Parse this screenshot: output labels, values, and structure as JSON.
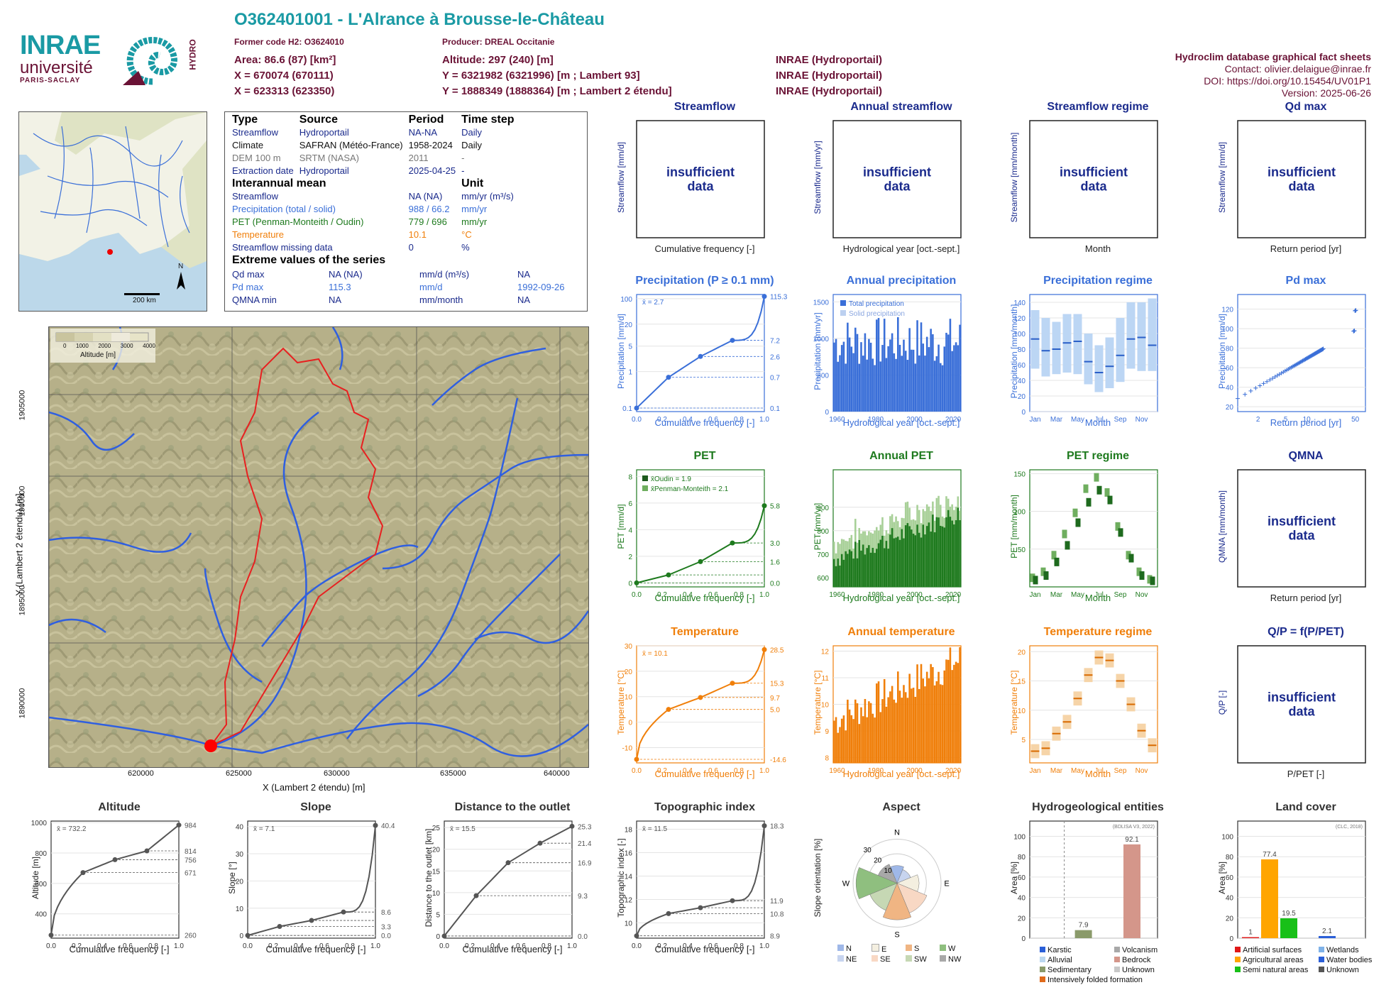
{
  "header": {
    "title": "O362401001 - L'Alrance à Brousse-le-Château",
    "former_code": "Former code H2: O3624010",
    "producer": "Producer: DREAL Occitanie",
    "area": "Area: 86.6 (87) [km²]",
    "altitude": "Altitude: 297 (240) [m]",
    "x93": "X = 670074 (670111)",
    "y93": "Y = 6321982 (6321996) [m ; Lambert 93]",
    "src1": "INRAE (Hydroportail)",
    "x2e": "X = 623313 (623350)",
    "y2e": "Y = 1888349 (1888364) [m ; Lambert 2 étendu]",
    "src2": "INRAE (Hydroportail)",
    "src3": "INRAE (Hydroportail)",
    "db": "Hydroclim database graphical fact sheets",
    "contact": "Contact: olivier.delaigue@inrae.fr",
    "doi": "DOI: https://doi.org/10.15454/UV01P1",
    "version": "Version: 2025-06-26",
    "logo_inrae": "INRAE",
    "logo_univ": "université",
    "logo_paris": "PARIS-SACLAY",
    "logo_hydro": "HYDRO"
  },
  "colors": {
    "teal": "#1a9aa4",
    "maroon": "#6a1235",
    "blue": "#3a6fd8",
    "green": "#1e7a1e",
    "orange": "#f07f0a",
    "navy": "#1a2a8c"
  },
  "inset_map": {
    "scale": "200 km",
    "north": "N"
  },
  "info": {
    "h_type": "Type",
    "h_source": "Source",
    "h_period": "Period",
    "h_step": "Time step",
    "rows": [
      {
        "type": "Streamflow",
        "source": "Hydroportail",
        "period": "NA-NA",
        "step": "Daily"
      },
      {
        "type": "Climate",
        "source": "SAFRAN (Météo-France)",
        "period": "1958-2024",
        "step": "Daily"
      },
      {
        "type": "DEM 100 m",
        "source": "SRTM (NASA)",
        "period": "2011",
        "step": "-"
      },
      {
        "type": "Extraction date",
        "source": "Hydroportail",
        "period": "2025-04-25",
        "step": "-"
      }
    ],
    "h_mean": "Interannual mean",
    "h_unit": "Unit",
    "mean_rows": [
      {
        "label": "Streamflow",
        "value": "NA (NA)",
        "unit": "mm/yr (m³/s)"
      },
      {
        "label": "Precipitation (total / solid)",
        "value": "988 / 66.2",
        "unit": "mm/yr"
      },
      {
        "label": "PET (Penman-Monteith / Oudin)",
        "value": "779 / 696",
        "unit": "mm/yr"
      },
      {
        "label": "Temperature",
        "value": "10.1",
        "unit": "°C"
      },
      {
        "label": "Streamflow missing data",
        "value": "0",
        "unit": "%"
      }
    ],
    "h_extreme": "Extreme values of the series",
    "ext_rows": [
      {
        "label": "Qd max",
        "value": "NA (NA)",
        "unit": "mm/d (m³/s)",
        "date": "NA"
      },
      {
        "label": "Pd max",
        "value": "115.3",
        "unit": "mm/d",
        "date": "1992-09-26"
      },
      {
        "label": "QMNA min",
        "value": "NA",
        "unit": "mm/month",
        "date": "NA"
      }
    ]
  },
  "main_map": {
    "legend_title": "Altitude [m]",
    "legend_ticks": [
      "0",
      "1000",
      "2000",
      "3000",
      "4000"
    ],
    "xlabel": "X (Lambert 2 étendu) [m]",
    "ylabel": "Y (Lambert 2 étendu) [m]",
    "xticks": [
      "620000",
      "625000",
      "630000",
      "635000",
      "640000"
    ],
    "yticks": [
      "1905000",
      "1900000",
      "1895000",
      "1890000"
    ]
  },
  "insufficient": "insufficient data",
  "chart_data": [
    {
      "id": "streamflow",
      "type": "line",
      "title": "Streamflow",
      "ylabel": "Streamflow [mm/d]",
      "xlabel": "Cumulative frequency [-]"
    },
    {
      "id": "annual_streamflow",
      "type": "bar",
      "title": "Annual streamflow",
      "ylabel": "Streamflow [mm/yr]",
      "xlabel": "Hydrological year [oct.-sept.]"
    },
    {
      "id": "streamflow_regime",
      "type": "bar",
      "title": "Streamflow regime",
      "ylabel": "Streamflow [mm/month]",
      "xlabel": "Month"
    },
    {
      "id": "qd_max",
      "type": "scatter",
      "title": "Qd max",
      "ylabel": "Streamflow [mm/d]",
      "xlabel": "Return period [yr]"
    },
    {
      "id": "precip_cdf",
      "type": "line",
      "title": "Precipitation (P ≥ 0.1 mm)",
      "ylabel": "Precipitation [mm/d]",
      "xlabel": "Cumulative frequency [-]",
      "mean_label": "x̄ = 2.7",
      "x": [
        0,
        0.25,
        0.5,
        0.75,
        1.0
      ],
      "y": [
        0.1,
        0.7,
        2.6,
        7.2,
        115.3
      ],
      "ylog": true,
      "yticks": [
        "0.1",
        "1",
        "5",
        "20",
        "100"
      ],
      "right_labels": [
        "115.3",
        "7.2",
        "2.6",
        "0.7",
        "0.1"
      ],
      "xticks": [
        "0.0",
        "0.2",
        "0.4",
        "0.6",
        "0.8",
        "1.0"
      ]
    },
    {
      "id": "annual_precip",
      "type": "bar",
      "title": "Annual precipitation",
      "ylabel": "Precipitation [mm/yr]",
      "xlabel": "Hydrological year [oct.-sept.]",
      "series": [
        {
          "name": "Total precipitation"
        },
        {
          "name": "Solid precipitation"
        }
      ],
      "xticks": [
        "1960",
        "1980",
        "2000",
        "2020"
      ],
      "yticks": [
        "0",
        "500",
        "1000",
        "1500"
      ],
      "ylim": [
        0,
        1600
      ]
    },
    {
      "id": "precip_regime",
      "type": "bar",
      "title": "Precipitation regime",
      "ylabel": "Precipitation [mm/month]",
      "xlabel": "Month",
      "categories": [
        "Jan",
        "Feb",
        "Mar",
        "Apr",
        "May",
        "Jun",
        "Jul",
        "Aug",
        "Sep",
        "Oct",
        "Nov",
        "Dec"
      ],
      "median": [
        93,
        78,
        80,
        88,
        90,
        64,
        50,
        58,
        72,
        93,
        95,
        85
      ],
      "q_low": [
        55,
        45,
        48,
        50,
        48,
        35,
        25,
        30,
        38,
        55,
        52,
        52
      ],
      "q_high": [
        130,
        120,
        115,
        125,
        125,
        100,
        85,
        95,
        120,
        140,
        140,
        145
      ],
      "yticks": [
        "0",
        "20",
        "40",
        "60",
        "80",
        "100",
        "120",
        "140"
      ],
      "xticks": [
        "Jan",
        "Mar",
        "May",
        "Jul",
        "Sep",
        "Nov"
      ],
      "ylim": [
        0,
        150
      ]
    },
    {
      "id": "pd_max",
      "type": "scatter",
      "title": "Pd max",
      "ylabel": "Precipitation [mm/d]",
      "xlabel": "Return period [yr]",
      "yticks": [
        "20",
        "40",
        "60",
        "80",
        "100",
        "120"
      ],
      "xticks": [
        "2",
        "5",
        "10",
        "50"
      ]
    },
    {
      "id": "pet_cdf",
      "type": "line",
      "title": "PET",
      "ylabel": "PET [mm/d]",
      "xlabel": "Cumulative frequency [-]",
      "series": [
        {
          "name": "x̄Oudin = 1.9",
          "x": [
            0,
            0.25,
            0.5,
            0.75,
            1.0
          ],
          "y": [
            0.0,
            0.6,
            1.6,
            3.0,
            5.8
          ]
        },
        {
          "name": "x̄Penman-Monteith = 2.1"
        }
      ],
      "yticks": [
        "0",
        "2",
        "4",
        "6",
        "8"
      ],
      "right_labels": [
        "5.8",
        "3.0",
        "1.6",
        "0.0"
      ],
      "xticks": [
        "0.0",
        "0.2",
        "0.4",
        "0.6",
        "0.8",
        "1.0"
      ]
    },
    {
      "id": "annual_pet",
      "type": "bar",
      "title": "Annual PET",
      "ylabel": "PET [mm/yr]",
      "xlabel": "Hydrological year [oct.-sept.]",
      "xticks": [
        "1960",
        "1980",
        "2000",
        "2020"
      ],
      "yticks": [
        "600",
        "700",
        "800",
        "900"
      ],
      "ylim": [
        560,
        1060
      ]
    },
    {
      "id": "pet_regime",
      "type": "bar",
      "title": "PET regime",
      "ylabel": "PET [mm/month]",
      "xlabel": "Month",
      "categories": [
        "Jan",
        "Feb",
        "Mar",
        "Apr",
        "May",
        "Jun",
        "Jul",
        "Aug",
        "Sep",
        "Oct",
        "Nov",
        "Dec"
      ],
      "oudin": [
        9,
        15,
        33,
        55,
        85,
        112,
        128,
        115,
        72,
        38,
        15,
        8
      ],
      "pm": [
        12,
        20,
        42,
        70,
        98,
        130,
        145,
        125,
        80,
        42,
        20,
        10
      ],
      "yticks": [
        "50",
        "100",
        "150"
      ],
      "xticks": [
        "Jan",
        "Mar",
        "May",
        "Jul",
        "Sep",
        "Nov"
      ],
      "ylim": [
        0,
        155
      ]
    },
    {
      "id": "qmna",
      "type": "scatter",
      "title": "QMNA",
      "ylabel": "QMNA [mm/month]",
      "xlabel": "Return period [yr]"
    },
    {
      "id": "temp_cdf",
      "type": "line",
      "title": "Temperature",
      "ylabel": "Temperature [°C]",
      "xlabel": "Cumulative frequency [-]",
      "mean_label": "x̄ = 10.1",
      "x": [
        0,
        0.25,
        0.5,
        0.75,
        1.0
      ],
      "y": [
        -14.6,
        5.0,
        9.7,
        15.3,
        28.5
      ],
      "yticks": [
        "-10",
        "0",
        "10",
        "20",
        "30"
      ],
      "right_labels": [
        "28.5",
        "15.3",
        "9.7",
        "5.0",
        "-14.6"
      ],
      "xticks": [
        "0.0",
        "0.2",
        "0.4",
        "0.6",
        "0.8",
        "1.0"
      ]
    },
    {
      "id": "annual_temp",
      "type": "bar",
      "title": "Annual temperature",
      "ylabel": "Temperature [°C]",
      "xlabel": "Hydrological year [oct.-sept.]",
      "xticks": [
        "1960",
        "1980",
        "2000",
        "2020"
      ],
      "yticks": [
        "8",
        "9",
        "10",
        "11",
        "12"
      ],
      "ylim": [
        7.8,
        12.2
      ]
    },
    {
      "id": "temp_regime",
      "type": "bar",
      "title": "Temperature regime",
      "ylabel": "Temperature [°C]",
      "xlabel": "Month",
      "categories": [
        "Jan",
        "Feb",
        "Mar",
        "Apr",
        "May",
        "Jun",
        "Jul",
        "Aug",
        "Sep",
        "Oct",
        "Nov",
        "Dec"
      ],
      "median": [
        3,
        3.5,
        6,
        8,
        12,
        16,
        19,
        18.5,
        15,
        11,
        6.5,
        4
      ],
      "yticks": [
        "5",
        "10",
        "15",
        "20"
      ],
      "xticks": [
        "Jan",
        "Mar",
        "May",
        "Jul",
        "Sep",
        "Nov"
      ],
      "ylim": [
        1,
        21
      ]
    },
    {
      "id": "qp",
      "type": "scatter",
      "title": "Q/P = f(P/PET)",
      "ylabel": "Q/P [-]",
      "xlabel": "P/PET [-]"
    },
    {
      "id": "altitude",
      "type": "line",
      "title": "Altitude",
      "ylabel": "Altitude [m]",
      "xlabel": "Cumulative frequency [-]",
      "mean_label": "x̄ = 732.2",
      "x": [
        0,
        0.25,
        0.5,
        0.75,
        1.0
      ],
      "y": [
        260,
        671,
        756,
        814,
        984
      ],
      "yticks": [
        "400",
        "600",
        "800",
        "1000"
      ],
      "right_labels": [
        "984",
        "814",
        "756",
        "671",
        "260"
      ],
      "xticks": [
        "0.0",
        "0.2",
        "0.4",
        "0.6",
        "0.8",
        "1.0"
      ],
      "ylim": [
        240,
        1010
      ]
    },
    {
      "id": "slope",
      "type": "line",
      "title": "Slope",
      "ylabel": "Slope [°]",
      "xlabel": "Cumulative frequency [-]",
      "mean_label": "x̄ = 7.1",
      "x": [
        0,
        0.25,
        0.5,
        0.75,
        1.0
      ],
      "y": [
        0.0,
        3.3,
        5.5,
        8.6,
        40.4
      ],
      "yticks": [
        "0",
        "10",
        "20",
        "30",
        "40"
      ],
      "right_labels": [
        "40.4",
        "8.6",
        "3.3",
        "0.0"
      ],
      "xticks": [
        "0.0",
        "0.2",
        "0.4",
        "0.6",
        "0.8",
        "1.0"
      ],
      "ylim": [
        -1,
        42
      ]
    },
    {
      "id": "distance",
      "type": "line",
      "title": "Distance to the outlet",
      "ylabel": "Distance to the outlet [km]",
      "xlabel": "Cumulative frequency [-]",
      "mean_label": "x̄ = 15.5",
      "x": [
        0,
        0.25,
        0.5,
        0.75,
        1.0
      ],
      "y": [
        0.0,
        9.3,
        16.9,
        21.4,
        25.3
      ],
      "yticks": [
        "0",
        "5",
        "10",
        "15",
        "20",
        "25"
      ],
      "right_labels": [
        "25.3",
        "21.4",
        "16.9",
        "9.3",
        "0.0"
      ],
      "xticks": [
        "0.0",
        "0.2",
        "0.4",
        "0.6",
        "0.8",
        "1.0"
      ],
      "ylim": [
        -0.5,
        26.5
      ]
    },
    {
      "id": "topo",
      "type": "line",
      "title": "Topographic index",
      "ylabel": "Topographic index [-]",
      "xlabel": "Cumulative frequency [-]",
      "mean_label": "x̄ = 11.5",
      "x": [
        0,
        0.25,
        0.5,
        0.75,
        1.0
      ],
      "y": [
        8.9,
        10.8,
        11.3,
        11.9,
        18.3
      ],
      "yticks": [
        "10",
        "12",
        "14",
        "16",
        "18"
      ],
      "right_labels": [
        "18.3",
        "11.9",
        "10.8",
        "8.9"
      ],
      "xticks": [
        "0.0",
        "0.2",
        "0.4",
        "0.6",
        "0.8",
        "1.0"
      ],
      "ylim": [
        8.7,
        18.7
      ]
    },
    {
      "id": "aspect",
      "type": "pie",
      "title": "Aspect",
      "ylabel": "Slope orientation [%]",
      "directions": [
        "N",
        "NE",
        "E",
        "SE",
        "S",
        "SW",
        "W",
        "NW"
      ],
      "values": [
        12,
        10,
        15,
        22,
        25,
        20,
        28,
        14
      ],
      "ring_labels": [
        "10",
        "20",
        "30"
      ],
      "legend": [
        "N",
        "NE",
        "E",
        "SE",
        "S",
        "SW",
        "W",
        "NW"
      ],
      "compass": [
        "N",
        "E",
        "S",
        "W"
      ]
    },
    {
      "id": "hydrogeo",
      "type": "bar",
      "title": "Hydrogeological entities",
      "ylabel": "Area [%]",
      "source": "(BDLISA V3, 2022)",
      "categories": [
        "Karstic",
        "Alluvial",
        "Sedimentary",
        "Intensively folded formation",
        "Volcanism",
        "Bedrock",
        "Unknown"
      ],
      "values": [
        null,
        null,
        7.9,
        null,
        null,
        92.1,
        null
      ],
      "legend": [
        "Karstic",
        "Alluvial",
        "Sedimentary",
        "Intensively folded formation",
        "Volcanism",
        "Bedrock",
        "Unknown"
      ],
      "yticks": [
        "0",
        "20",
        "40",
        "60",
        "80",
        "100"
      ],
      "ylim": [
        0,
        115
      ]
    },
    {
      "id": "landcover",
      "type": "bar",
      "title": "Land cover",
      "ylabel": "Area [%]",
      "source": "(CLC, 2018)",
      "categories": [
        "Artificial surfaces",
        "Agricultural areas",
        "Semi natural areas",
        "Wetlands",
        "Water bodies",
        "Unknown"
      ],
      "values": [
        1,
        77.4,
        19.5,
        null,
        2.1,
        null
      ],
      "legend": [
        "Artificial surfaces",
        "Agricultural areas",
        "Semi natural areas",
        "Wetlands",
        "Water bodies",
        "Unknown"
      ],
      "yticks": [
        "0",
        "20",
        "40",
        "60",
        "80",
        "100"
      ],
      "ylim": [
        0,
        115
      ]
    }
  ]
}
